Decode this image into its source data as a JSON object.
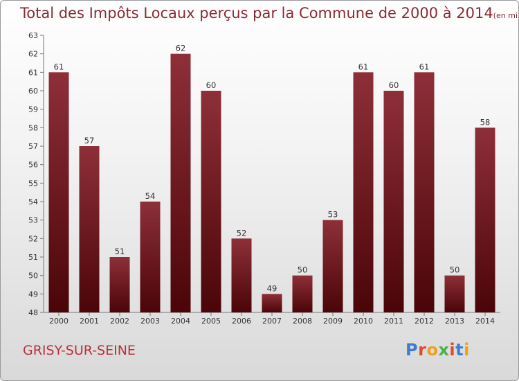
{
  "title": "Total des Impôts Locaux perçus par la Commune de 2000 à 2014",
  "unit": "(en milliers d'€)",
  "commune": "GRISY-SUR-SEINE",
  "logo": {
    "text": "Proxiti",
    "colors": [
      "#3a7fcf",
      "#e04a2a",
      "#f0a020",
      "#4caf50",
      "#e04a2a",
      "#3a7fcf",
      "#f0a020"
    ]
  },
  "colors": {
    "bar_top": "#8e2f38",
    "bar_bottom": "#4a0508",
    "title": "#8a2a33"
  },
  "chart_data": {
    "type": "bar",
    "categories": [
      "2000",
      "2001",
      "2002",
      "2003",
      "2004",
      "2005",
      "2006",
      "2007",
      "2008",
      "2009",
      "2010",
      "2011",
      "2012",
      "2013",
      "2014"
    ],
    "values": [
      61,
      57,
      51,
      54,
      62,
      60,
      52,
      49,
      50,
      53,
      61,
      60,
      61,
      50,
      58
    ],
    "ylim": [
      48,
      63
    ],
    "yticks": [
      48,
      49,
      50,
      51,
      52,
      53,
      54,
      55,
      56,
      57,
      58,
      59,
      60,
      61,
      62,
      63
    ],
    "grid": false,
    "data_labels": true
  }
}
